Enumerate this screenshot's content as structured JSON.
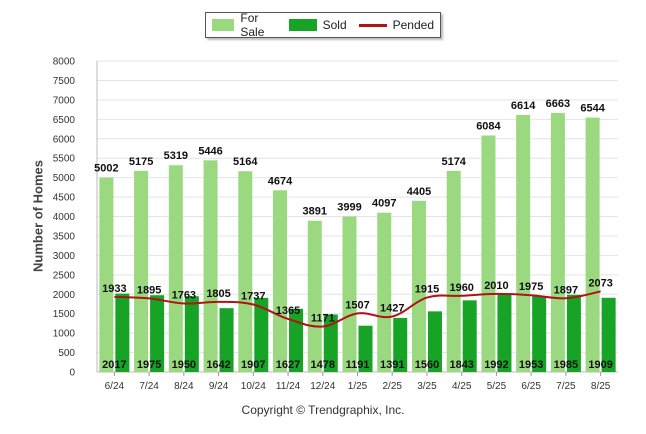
{
  "chart_data": {
    "type": "bar",
    "categories": [
      "6/24",
      "7/24",
      "8/24",
      "9/24",
      "10/24",
      "11/24",
      "12/24",
      "1/25",
      "2/25",
      "3/25",
      "4/25",
      "5/25",
      "6/25",
      "7/25",
      "8/25"
    ],
    "series": [
      {
        "name": "For Sale",
        "type": "bar",
        "color": "#9ad97f",
        "values": [
          5002,
          5175,
          5319,
          5446,
          5164,
          4674,
          3891,
          3999,
          4097,
          4405,
          5174,
          6084,
          6614,
          6663,
          6544
        ]
      },
      {
        "name": "Sold",
        "type": "bar",
        "color": "#17a326",
        "values": [
          2017,
          1975,
          1950,
          1642,
          1907,
          1627,
          1478,
          1191,
          1391,
          1560,
          1843,
          1992,
          1953,
          1985,
          1909
        ]
      },
      {
        "name": "Pended",
        "type": "line",
        "color": "#b01313",
        "values": [
          1933,
          1895,
          1763,
          1805,
          1737,
          1365,
          1171,
          1507,
          1427,
          1915,
          1960,
          2010,
          1975,
          1897,
          2073
        ]
      }
    ],
    "ylabel": "Number of Homes",
    "ylim": [
      0,
      8000
    ],
    "yticks": [
      0,
      500,
      1000,
      1500,
      2000,
      2500,
      3000,
      3500,
      4000,
      4500,
      5000,
      5500,
      6000,
      6500,
      7000,
      7500,
      8000
    ],
    "grid": true,
    "legend_position": "top-center"
  },
  "legend": [
    {
      "label": "For Sale",
      "kind": "bar",
      "color": "#9ad97f"
    },
    {
      "label": "Sold",
      "kind": "bar",
      "color": "#17a326"
    },
    {
      "label": "Pended",
      "kind": "line",
      "color": "#b01313"
    }
  ],
  "footer": {
    "copyright": "Copyright © Trendgraphix, Inc."
  }
}
